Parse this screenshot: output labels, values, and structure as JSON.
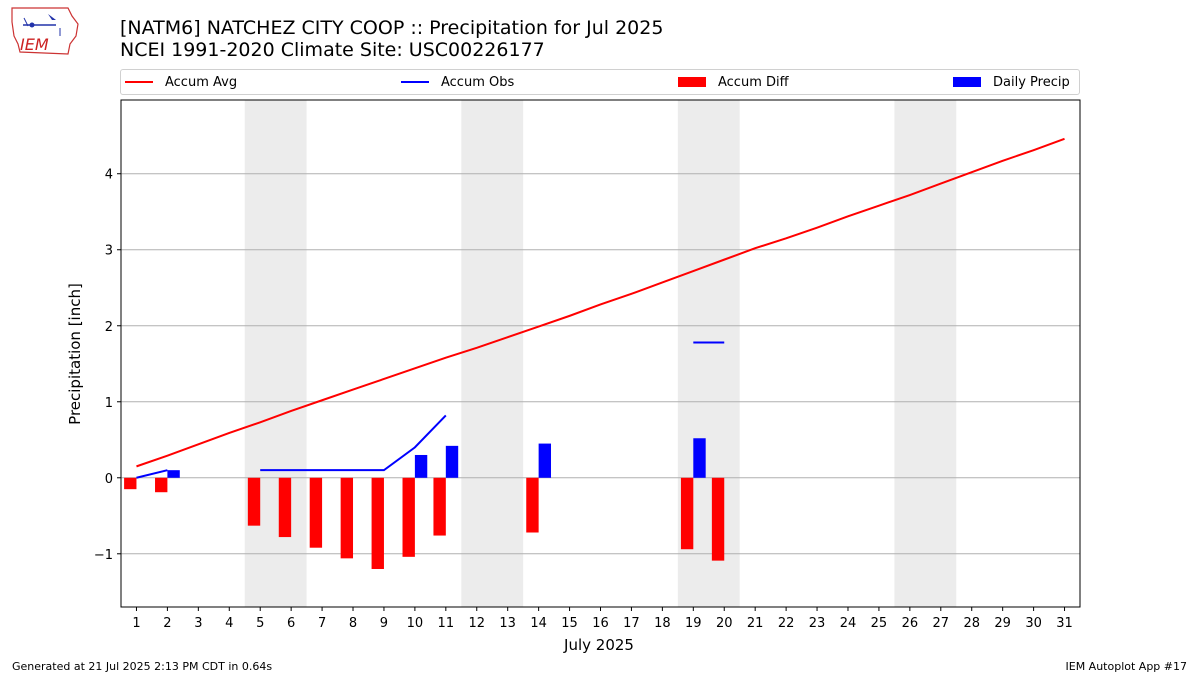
{
  "header": {
    "title_line1": "[NATM6] NATCHEZ CITY COOP :: Precipitation for Jul 2025",
    "title_line2": "NCEI 1991-2020 Climate Site: USC00226177",
    "logo_text": "IEM"
  },
  "legend": {
    "items": [
      {
        "label": "Accum Avg",
        "kind": "line",
        "color": "#ff0000"
      },
      {
        "label": "Accum Obs",
        "kind": "line",
        "color": "#0000ff"
      },
      {
        "label": "Accum Diff",
        "kind": "bar",
        "color": "#ff0000"
      },
      {
        "label": "Daily Precip",
        "kind": "bar",
        "color": "#0000ff"
      }
    ]
  },
  "footer": {
    "left": "Generated at 21 Jul 2025 2:13 PM CDT in 0.64s",
    "right": "IEM Autoplot App #17"
  },
  "chart_data": {
    "type": "bar",
    "xlabel": "July 2025",
    "ylabel": "Precipitation [inch]",
    "xlim": [
      0.5,
      31.5
    ],
    "ylim": [
      -1.7,
      4.97
    ],
    "yticks": [
      -1,
      0,
      1,
      2,
      3,
      4
    ],
    "ytick_labels": [
      "−1",
      "0",
      "1",
      "2",
      "3",
      "4"
    ],
    "categories": [
      "1",
      "2",
      "3",
      "4",
      "5",
      "6",
      "7",
      "8",
      "9",
      "10",
      "11",
      "12",
      "13",
      "14",
      "15",
      "16",
      "17",
      "18",
      "19",
      "20",
      "21",
      "22",
      "23",
      "24",
      "25",
      "26",
      "27",
      "28",
      "29",
      "30",
      "31"
    ],
    "grid": "horizontal",
    "legend_position": "top",
    "weekend_shading": [
      [
        4.5,
        6.5
      ],
      [
        11.5,
        13.5
      ],
      [
        18.5,
        20.5
      ],
      [
        25.5,
        27.5
      ]
    ],
    "series": [
      {
        "name": "Accum Avg",
        "kind": "line",
        "color": "#ff0000",
        "x": [
          1,
          2,
          3,
          4,
          5,
          6,
          7,
          8,
          9,
          10,
          11,
          12,
          13,
          14,
          15,
          16,
          17,
          18,
          19,
          20,
          21,
          22,
          23,
          24,
          25,
          26,
          27,
          28,
          29,
          30,
          31
        ],
        "values": [
          0.15,
          0.29,
          0.44,
          0.59,
          0.73,
          0.88,
          1.02,
          1.16,
          1.3,
          1.44,
          1.58,
          1.71,
          1.85,
          1.99,
          2.13,
          2.28,
          2.42,
          2.57,
          2.72,
          2.87,
          3.02,
          3.15,
          3.29,
          3.44,
          3.58,
          3.72,
          3.87,
          4.02,
          4.17,
          4.31,
          4.46
        ]
      },
      {
        "name": "Accum Obs",
        "kind": "line",
        "color": "#0000ff",
        "segments": [
          {
            "x": [
              1,
              2
            ],
            "values": [
              0.0,
              0.1
            ]
          },
          {
            "x": [
              5,
              6,
              7,
              8,
              9,
              10,
              11
            ],
            "values": [
              0.1,
              0.1,
              0.1,
              0.1,
              0.1,
              0.4,
              0.82
            ]
          },
          {
            "x": [
              19,
              20
            ],
            "values": [
              1.78,
              1.78
            ]
          }
        ]
      },
      {
        "name": "Accum Diff",
        "kind": "bar",
        "color": "#ff0000",
        "x": [
          1,
          2,
          5,
          6,
          7,
          8,
          9,
          10,
          11,
          14,
          19,
          20
        ],
        "values": [
          -0.15,
          -0.19,
          -0.63,
          -0.78,
          -0.92,
          -1.06,
          -1.2,
          -1.04,
          -0.76,
          -0.72,
          -0.94,
          -1.09
        ]
      },
      {
        "name": "Daily Precip",
        "kind": "bar",
        "color": "#0000ff",
        "x": [
          2,
          10,
          11,
          14,
          19
        ],
        "values": [
          0.1,
          0.3,
          0.42,
          0.45,
          0.52
        ]
      }
    ]
  }
}
